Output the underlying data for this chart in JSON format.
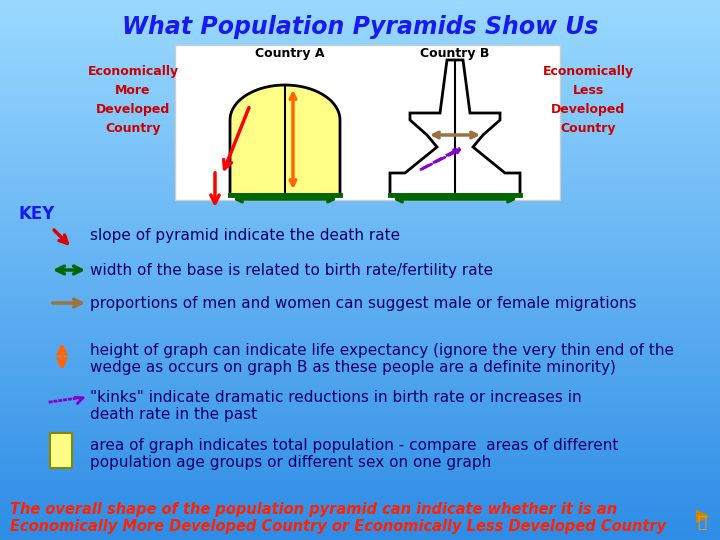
{
  "title": "What Population Pyramids Show Us",
  "title_color": "#1a1aee",
  "title_fontsize": 17,
  "bg_color": "#4da6ff",
  "left_label": "Economically\nMore\nDeveloped\nCountry",
  "right_label": "Economically\nLess\nDeveloped\nCountry",
  "label_color": "#cc0000",
  "key_label": "KEY",
  "key_color": "#1a1aee",
  "key_items": [
    {
      "icon": "red_arrow_diagonal",
      "text": "slope of pyramid indicate the death rate"
    },
    {
      "icon": "green_double_arrow",
      "text": "width of the base is related to birth rate/fertility rate"
    },
    {
      "icon": "brown_arrow",
      "text": "proportions of men and women can suggest male or female migrations"
    },
    {
      "icon": "orange_double_arrow_vertical",
      "text": "height of graph can indicate life expectancy (ignore the very thin end of the\nwedge as occurs on graph B as these people are a definite minority)"
    },
    {
      "icon": "purple_dashed_arrow",
      "text": "\"kinks\" indicate dramatic reductions in birth rate or increases in\ndeath rate in the past"
    },
    {
      "icon": "yellow_rect",
      "text": "area of graph indicates total population - compare  areas of different\npopulation age groups or different sex on one graph"
    }
  ],
  "footer_text": "The overall shape of the population pyramid can indicate whether it is an\nEconomically More Developed Country or Economically Less Developed Country",
  "footer_color": "#ff2200",
  "footer_fontsize": 10.5,
  "text_color": "#000066",
  "text_fontsize": 11
}
